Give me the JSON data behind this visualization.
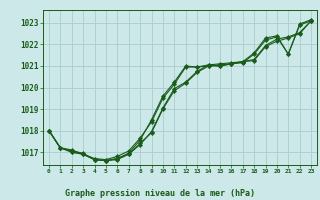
{
  "bg_color": "#cce8e8",
  "grid_color": "#aacccc",
  "line_color": "#1a5c1a",
  "marker_color": "#1a5c1a",
  "title": "Graphe pression niveau de la mer (hPa)",
  "title_color": "#1a5c1a",
  "xlim": [
    -0.5,
    23.5
  ],
  "ylim": [
    1016.4,
    1023.6
  ],
  "yticks": [
    1017,
    1018,
    1019,
    1020,
    1021,
    1022,
    1023
  ],
  "xticks": [
    0,
    1,
    2,
    3,
    4,
    5,
    6,
    7,
    8,
    9,
    10,
    11,
    12,
    13,
    14,
    15,
    16,
    17,
    18,
    19,
    20,
    21,
    22,
    23
  ],
  "xtick_labels": [
    "0",
    "1",
    "2",
    "3",
    "4",
    "5",
    "6",
    "7",
    "8",
    "9",
    "10",
    "11",
    "12",
    "13",
    "14",
    "15",
    "16",
    "17",
    "18",
    "19",
    "20",
    "21",
    "22",
    "23"
  ],
  "series": [
    [
      1018.0,
      1017.2,
      1017.0,
      1016.9,
      1016.65,
      1016.6,
      1016.65,
      1016.9,
      1017.35,
      1017.95,
      1019.05,
      1019.95,
      1020.25,
      1020.75,
      1021.05,
      1021.0,
      1021.1,
      1021.2,
      1021.3,
      1021.95,
      1022.25,
      1022.35,
      1022.55,
      1023.1
    ],
    [
      1018.0,
      1017.2,
      1017.05,
      1016.95,
      1016.65,
      1016.6,
      1016.7,
      1016.95,
      1017.55,
      1018.5,
      1019.6,
      1020.25,
      1021.0,
      1020.95,
      1021.05,
      1021.1,
      1021.15,
      1021.2,
      1021.6,
      1022.3,
      1022.4,
      1021.55,
      1022.95,
      1023.15
    ],
    [
      1018.0,
      1017.2,
      1017.1,
      1016.9,
      1016.7,
      1016.65,
      1016.8,
      1017.05,
      1017.65,
      1018.4,
      1019.5,
      1020.15,
      1020.95,
      1020.95,
      1021.0,
      1021.05,
      1021.1,
      1021.15,
      1021.55,
      1022.2,
      1022.35,
      1021.55,
      1022.9,
      1023.1
    ],
    [
      1018.0,
      1017.2,
      1017.0,
      1016.9,
      1016.65,
      1016.6,
      1016.7,
      1016.9,
      1017.4,
      1017.9,
      1019.0,
      1019.85,
      1020.2,
      1020.7,
      1021.0,
      1021.0,
      1021.1,
      1021.2,
      1021.25,
      1021.9,
      1022.15,
      1022.3,
      1022.5,
      1023.1
    ]
  ]
}
